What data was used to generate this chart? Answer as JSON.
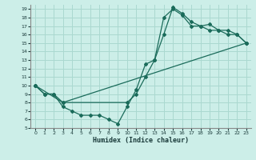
{
  "xlabel": "Humidex (Indice chaleur)",
  "background_color": "#cceee8",
  "grid_color": "#aad8d0",
  "line_color": "#1a6b5a",
  "xlim": [
    -0.5,
    23.5
  ],
  "ylim": [
    5,
    19.5
  ],
  "xticks": [
    0,
    1,
    2,
    3,
    4,
    5,
    6,
    7,
    8,
    9,
    10,
    11,
    12,
    13,
    14,
    15,
    16,
    17,
    18,
    19,
    20,
    21,
    22,
    23
  ],
  "yticks": [
    5,
    6,
    7,
    8,
    9,
    10,
    11,
    12,
    13,
    14,
    15,
    16,
    17,
    18,
    19
  ],
  "line1_x": [
    0,
    1,
    2,
    3,
    4,
    5,
    6,
    7,
    8,
    9,
    10,
    11,
    12,
    13,
    14,
    15,
    16,
    17,
    18,
    19,
    20,
    21,
    22,
    23
  ],
  "line1_y": [
    10,
    9,
    9,
    7.5,
    7,
    6.5,
    6.5,
    6.5,
    6,
    5.5,
    7.5,
    9.5,
    12.5,
    13,
    16,
    19.2,
    18.5,
    17.5,
    17,
    16.5,
    16.5,
    16,
    16,
    15
  ],
  "line2_x": [
    0,
    1,
    2,
    3,
    10,
    11,
    12,
    13,
    14,
    15,
    16,
    17,
    18,
    19,
    20,
    21,
    22,
    23
  ],
  "line2_y": [
    10,
    9,
    9,
    8,
    8,
    9,
    11,
    13,
    18,
    19.0,
    18.3,
    17,
    17,
    17.2,
    16.5,
    16.5,
    16,
    15
  ],
  "line3_x": [
    0,
    3,
    23
  ],
  "line3_y": [
    10,
    8,
    15
  ]
}
